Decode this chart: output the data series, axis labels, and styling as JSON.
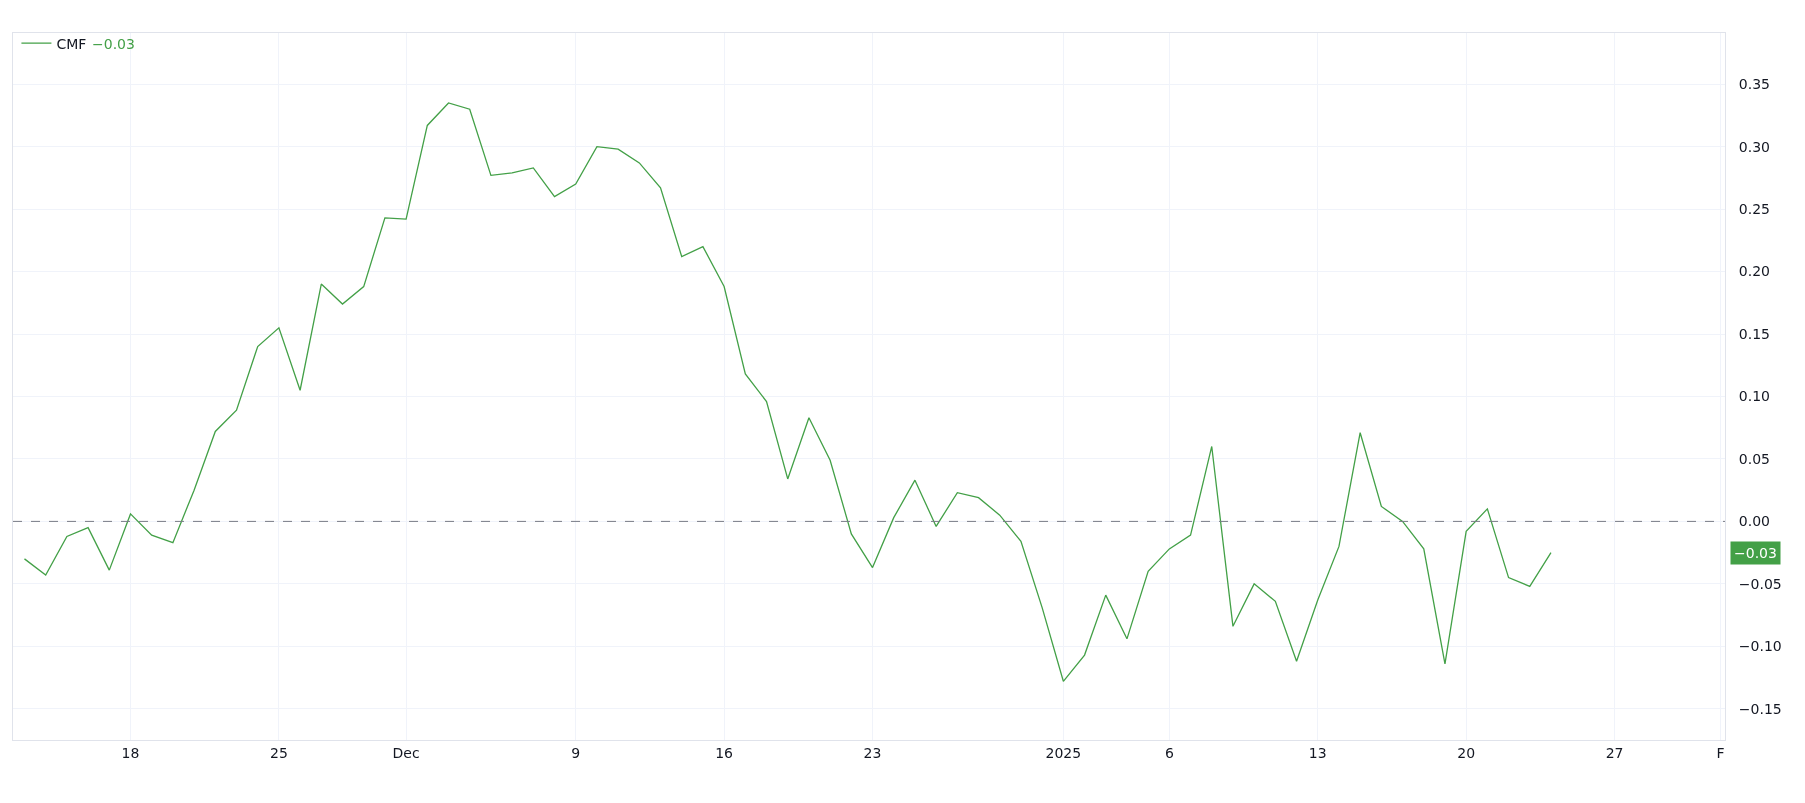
{
  "chart_data": {
    "type": "line",
    "x": [
      "2024-11-13",
      "2024-11-14",
      "2024-11-15",
      "2024-11-16",
      "2024-11-17",
      "2024-11-18",
      "2024-11-19",
      "2024-11-20",
      "2024-11-21",
      "2024-11-22",
      "2024-11-23",
      "2024-11-24",
      "2024-11-25",
      "2024-11-26",
      "2024-11-27",
      "2024-11-28",
      "2024-11-29",
      "2024-11-30",
      "2024-12-01",
      "2024-12-02",
      "2024-12-03",
      "2024-12-04",
      "2024-12-05",
      "2024-12-06",
      "2024-12-07",
      "2024-12-08",
      "2024-12-09",
      "2024-12-10",
      "2024-12-11",
      "2024-12-12",
      "2024-12-13",
      "2024-12-14",
      "2024-12-15",
      "2024-12-16",
      "2024-12-17",
      "2024-12-18",
      "2024-12-19",
      "2024-12-20",
      "2024-12-21",
      "2024-12-22",
      "2024-12-23",
      "2024-12-24",
      "2024-12-25",
      "2024-12-26",
      "2024-12-27",
      "2024-12-28",
      "2024-12-29",
      "2024-12-30",
      "2024-12-31",
      "2025-01-01",
      "2025-01-02",
      "2025-01-03",
      "2025-01-04",
      "2025-01-05",
      "2025-01-06",
      "2025-01-07",
      "2025-01-08",
      "2025-01-09",
      "2025-01-10",
      "2025-01-11",
      "2025-01-12",
      "2025-01-13",
      "2025-01-14",
      "2025-01-15",
      "2025-01-16",
      "2025-01-17",
      "2025-01-18",
      "2025-01-19",
      "2025-01-20",
      "2025-01-21",
      "2025-01-22",
      "2025-01-23",
      "2025-01-24"
    ],
    "series": [
      {
        "name": "CMF",
        "color": "#43a047",
        "values": [
          -0.03,
          -0.043,
          -0.012,
          -0.005,
          -0.039,
          0.006,
          -0.011,
          -0.017,
          0.025,
          0.072,
          0.089,
          0.14,
          0.155,
          0.105,
          0.19,
          0.174,
          0.188,
          0.243,
          0.242,
          0.317,
          0.335,
          0.33,
          0.277,
          0.279,
          0.283,
          0.26,
          0.27,
          0.3,
          0.298,
          0.287,
          0.267,
          0.212,
          0.22,
          0.188,
          0.118,
          0.096,
          0.034,
          0.083,
          0.049,
          -0.01,
          -0.037,
          0.003,
          0.033,
          -0.004,
          0.023,
          0.019,
          0.005,
          -0.016,
          -0.069,
          -0.128,
          -0.107,
          -0.059,
          -0.094,
          -0.04,
          -0.022,
          -0.011,
          0.06,
          -0.084,
          -0.05,
          -0.064,
          -0.112,
          -0.063,
          -0.02,
          0.071,
          0.012,
          0.0,
          -0.022,
          -0.114,
          -0.008,
          0.01,
          -0.045,
          -0.052,
          -0.025
        ]
      }
    ],
    "annotations": [
      "−0.03",
      "−0.03"
    ],
    "ref_lines": [
      {
        "axis": "y",
        "value": 0,
        "color": "#787b86",
        "line_style": "dashed"
      }
    ],
    "xlim": [
      "2024-11-12T11:00",
      "2025-02-01T05:00"
    ],
    "xticks": [
      {
        "value": "2024-11-18",
        "label": "18"
      },
      {
        "value": "2024-11-25",
        "label": "25"
      },
      {
        "value": "2024-12-01",
        "label": "Dec"
      },
      {
        "value": "2024-12-09",
        "label": "9"
      },
      {
        "value": "2024-12-16",
        "label": "16"
      },
      {
        "value": "2024-12-23",
        "label": "23"
      },
      {
        "value": "2025-01-01",
        "label": "2025"
      },
      {
        "value": "2025-01-06",
        "label": "6"
      },
      {
        "value": "2025-01-13",
        "label": "13"
      },
      {
        "value": "2025-01-20",
        "label": "20"
      },
      {
        "value": "2025-01-27",
        "label": "27"
      },
      {
        "value": "2025-02-01",
        "label": "F"
      }
    ],
    "ylim": [
      -0.175,
      0.391
    ],
    "yticks": [
      {
        "value": -0.15,
        "label": "−0.15"
      },
      {
        "value": -0.1,
        "label": "−0.10"
      },
      {
        "value": -0.05,
        "label": "−0.05"
      },
      {
        "value": 0,
        "label": "0.00"
      },
      0.05,
      {
        "value": 0.1,
        "label": "0.10"
      },
      0.15,
      {
        "value": 0.2,
        "label": "0.20"
      },
      0.25,
      {
        "value": 0.3,
        "label": "0.30"
      },
      0.35
    ],
    "grid": true,
    "legend": "top left",
    "line_style": "solid",
    "marker": "none"
  }
}
